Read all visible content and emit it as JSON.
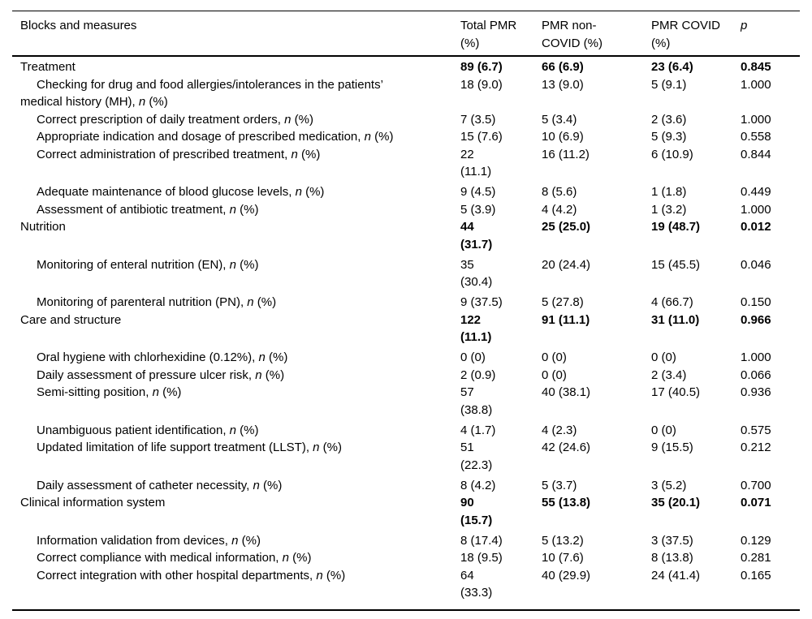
{
  "colors": {
    "text": "#000000",
    "background": "#ffffff",
    "rule": "#000000"
  },
  "table": {
    "columns": [
      {
        "id": "blocks",
        "label": "Blocks and measures"
      },
      {
        "id": "total-pmr",
        "label": "Total PMR\n(%)"
      },
      {
        "id": "pmr-non-covid",
        "label": "PMR non-\nCOVID (%)"
      },
      {
        "id": "pmr-covid",
        "label": "PMR COVID\n(%)"
      },
      {
        "id": "p",
        "label": "p"
      }
    ],
    "rows": [
      {
        "type": "block",
        "label": "Treatment",
        "values": [
          "89 (6.7)",
          "66 (6.9)",
          "23 (6.4)",
          "0.845"
        ]
      },
      {
        "type": "sub",
        "label": "Checking for drug and food allergies/intolerances in the patients’\nmedical history (MH), n (%)",
        "values": [
          "18 (9.0)",
          "13 (9.0)",
          "5 (9.1)",
          "1.000"
        ]
      },
      {
        "type": "sub",
        "label": "Correct prescription of daily treatment orders, n (%)",
        "values": [
          "7 (3.5)",
          "5 (3.4)",
          "2 (3.6)",
          "1.000"
        ]
      },
      {
        "type": "sub",
        "label": "Appropriate indication and dosage of prescribed medication, n (%)",
        "values": [
          "15 (7.6)",
          "10 (6.9)",
          "5 (9.3)",
          "0.558"
        ]
      },
      {
        "type": "sub",
        "label": "Correct administration of prescribed treatment, n (%)",
        "values": [
          "22\n(11.1)",
          "16 (11.2)",
          "6 (10.9)",
          "0.844"
        ]
      },
      {
        "type": "sub",
        "label": "Adequate maintenance of blood glucose levels, n (%)",
        "values": [
          "9 (4.5)",
          "8 (5.6)",
          "1 (1.8)",
          "0.449"
        ]
      },
      {
        "type": "sub",
        "label": "Assessment of antibiotic treatment, n (%)",
        "values": [
          "5 (3.9)",
          "4 (4.2)",
          "1 (3.2)",
          "1.000"
        ]
      },
      {
        "type": "block",
        "label": "Nutrition",
        "values": [
          "44\n(31.7)",
          "25 (25.0)",
          "19 (48.7)",
          "0.012"
        ]
      },
      {
        "type": "sub",
        "label": "Monitoring of enteral nutrition (EN), n (%)",
        "values": [
          "35\n(30.4)",
          "20 (24.4)",
          "15 (45.5)",
          "0.046"
        ]
      },
      {
        "type": "sub",
        "label": "Monitoring of parenteral nutrition (PN), n (%)",
        "values": [
          "9 (37.5)",
          "5 (27.8)",
          "4 (66.7)",
          "0.150"
        ]
      },
      {
        "type": "block",
        "label": "Care and structure",
        "values": [
          "122\n(11.1)",
          "91 (11.1)",
          "31 (11.0)",
          "0.966"
        ]
      },
      {
        "type": "sub",
        "label": "Oral hygiene with chlorhexidine (0.12%), n (%)",
        "values": [
          "0 (0)",
          "0 (0)",
          "0 (0)",
          "1.000"
        ]
      },
      {
        "type": "sub",
        "label": "Daily assessment of pressure ulcer risk, n (%)",
        "values": [
          "2 (0.9)",
          "0 (0)",
          "2 (3.4)",
          "0.066"
        ]
      },
      {
        "type": "sub",
        "label": "Semi-sitting position, n (%)",
        "values": [
          "57\n(38.8)",
          "40 (38.1)",
          "17 (40.5)",
          "0.936"
        ]
      },
      {
        "type": "sub",
        "label": "Unambiguous patient identification, n (%)",
        "values": [
          "4 (1.7)",
          "4 (2.3)",
          "0 (0)",
          "0.575"
        ]
      },
      {
        "type": "sub",
        "label": "Updated limitation of life support treatment (LLST), n (%)",
        "values": [
          "51\n(22.3)",
          "42 (24.6)",
          "9 (15.5)",
          "0.212"
        ]
      },
      {
        "type": "sub",
        "label": "Daily assessment of catheter necessity, n (%)",
        "values": [
          "8 (4.2)",
          "5 (3.7)",
          "3 (5.2)",
          "0.700"
        ]
      },
      {
        "type": "block",
        "label": "Clinical information system",
        "values": [
          "90\n(15.7)",
          "55 (13.8)",
          "35 (20.1)",
          "0.071"
        ]
      },
      {
        "type": "sub",
        "label": "Information validation from devices, n (%)",
        "values": [
          "8 (17.4)",
          "5 (13.2)",
          "3 (37.5)",
          "0.129"
        ]
      },
      {
        "type": "sub",
        "label": "Correct compliance with medical information, n (%)",
        "values": [
          "18 (9.5)",
          "10 (7.6)",
          "8 (13.8)",
          "0.281"
        ]
      },
      {
        "type": "sub",
        "label": "Correct integration with other hospital departments, n (%)",
        "values": [
          "64\n(33.3)",
          "40 (29.9)",
          "24 (41.4)",
          "0.165"
        ]
      }
    ]
  }
}
